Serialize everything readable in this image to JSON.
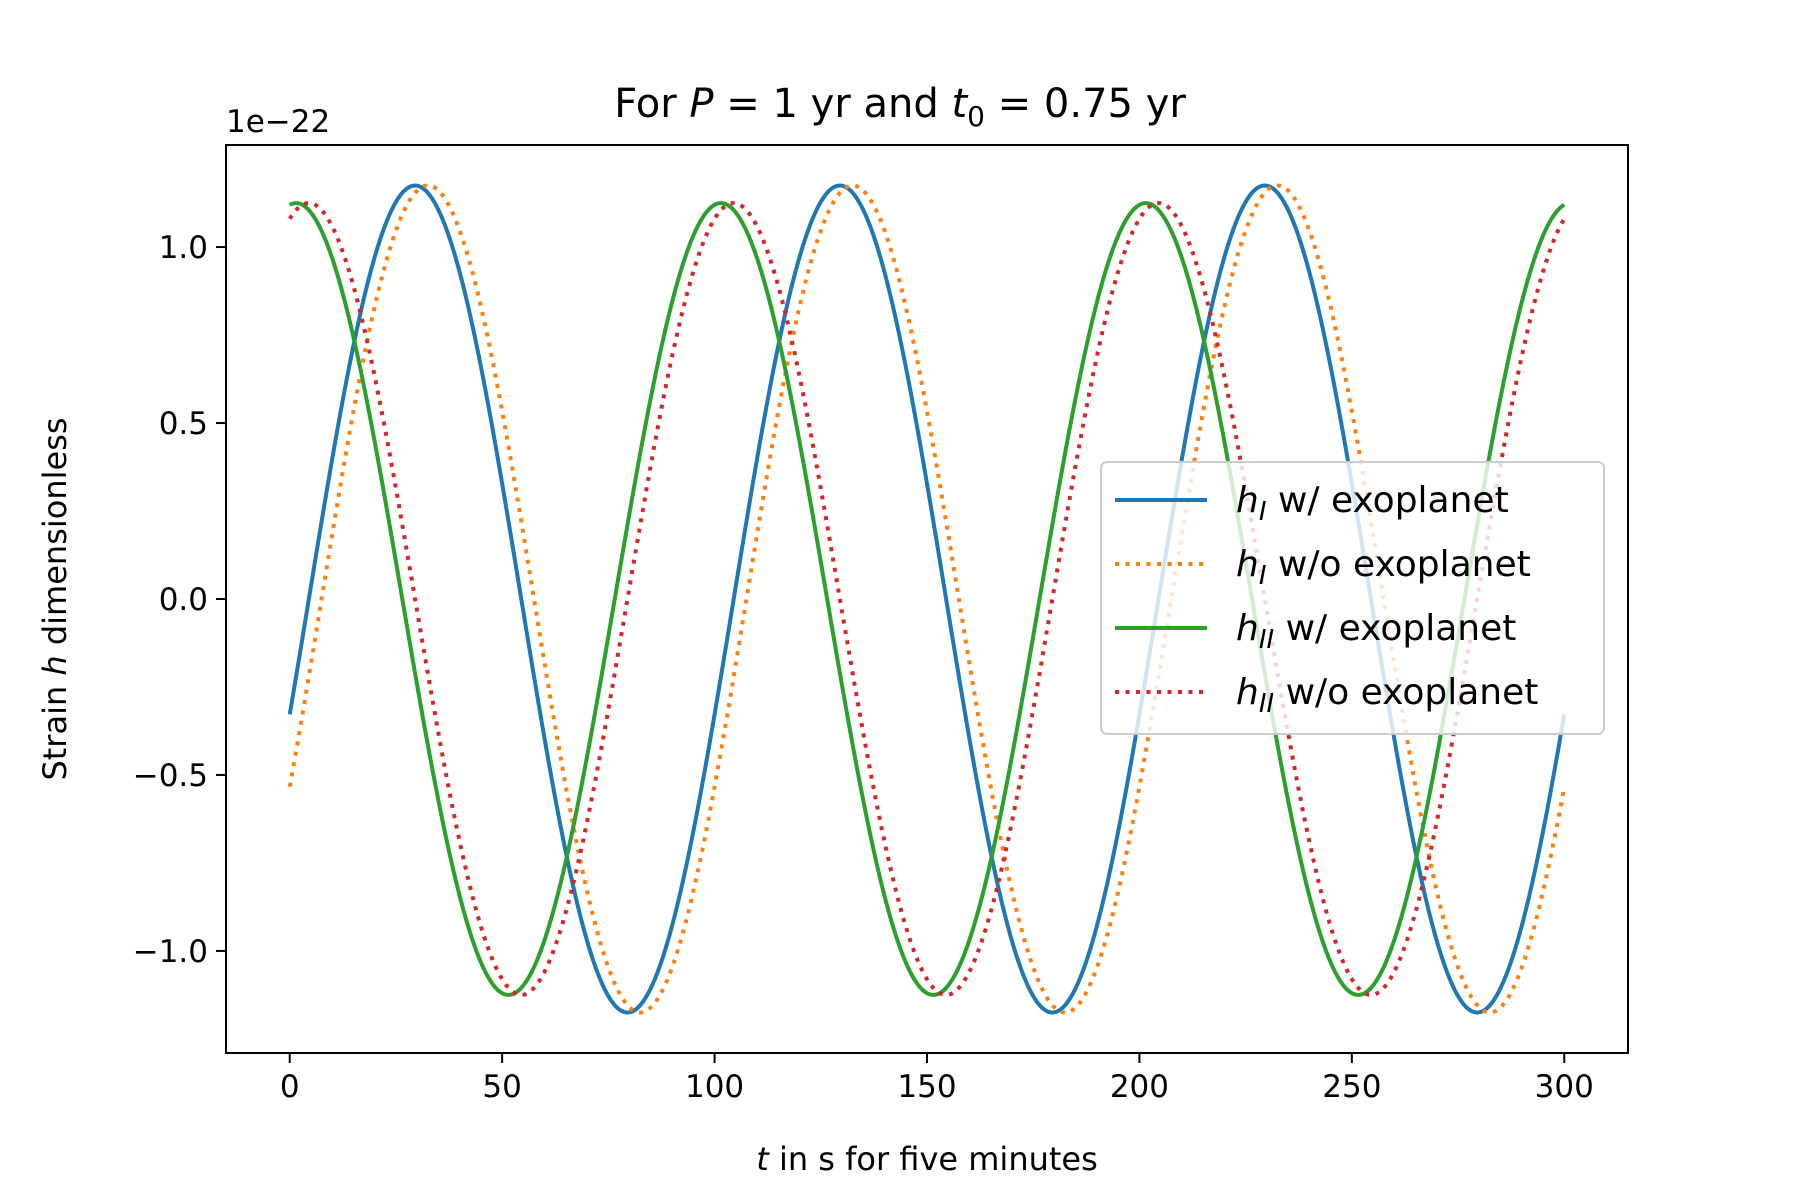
{
  "chart_data": {
    "type": "line",
    "title": {
      "prefix": "For ",
      "var1": "P",
      "mid1": " = 1 yr and ",
      "var2": "t",
      "var2_sub": "0",
      "suffix": " = 0.75 yr"
    },
    "xlabel": {
      "var": "t",
      "rest": " in s for five minutes"
    },
    "ylabel": {
      "prefix": "Strain ",
      "var": "h",
      "rest": " dimensionless"
    },
    "y_offset_label": "1e−22",
    "xlim": [
      -15,
      315
    ],
    "ylim": [
      -1.29,
      1.29
    ],
    "x_ticks": [
      0,
      50,
      100,
      150,
      200,
      250,
      300
    ],
    "x_tick_labels": [
      "0",
      "50",
      "100",
      "150",
      "200",
      "250",
      "300"
    ],
    "y_ticks": [
      -1.0,
      -0.5,
      0.0,
      0.5,
      1.0
    ],
    "y_tick_labels": [
      "−1.0",
      "−0.5",
      "0.0",
      "0.5",
      "1.0"
    ],
    "grid": false,
    "legend_placement": "center-right",
    "series": [
      {
        "name": "w/ exoplanet",
        "sym": "h",
        "sub": "I",
        "color": "#1f77b4",
        "style": "solid",
        "amplitude": 1.175,
        "period_s": 100,
        "peak_time_s": 29.5,
        "x_range": [
          0,
          300
        ]
      },
      {
        "name": "w/o exoplanet",
        "sym": "h",
        "sub": "I",
        "color": "#ff7f0e",
        "style": "dotted",
        "amplitude": 1.175,
        "period_s": 100,
        "peak_time_s": 32.5,
        "x_range": [
          0,
          300
        ]
      },
      {
        "name": "w/ exoplanet",
        "sym": "h",
        "sub": "II",
        "color": "#2ca02c",
        "style": "solid",
        "amplitude": 1.125,
        "period_s": 100,
        "peak_time_s": 1.5,
        "x_range": [
          0,
          300
        ]
      },
      {
        "name": "w/o exoplanet",
        "sym": "h",
        "sub": "II",
        "color": "#d62728",
        "style": "dotted",
        "amplitude": 1.125,
        "period_s": 100,
        "peak_time_s": 4.5,
        "x_range": [
          0,
          300
        ]
      }
    ]
  }
}
